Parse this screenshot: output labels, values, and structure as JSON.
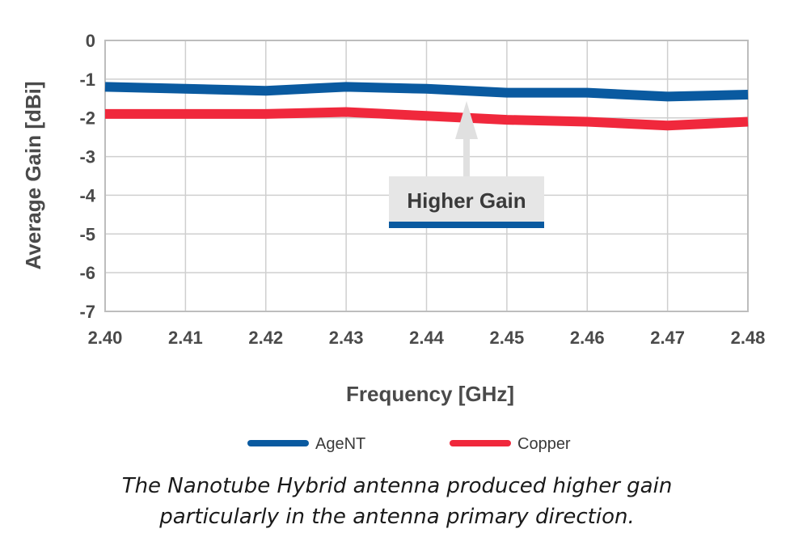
{
  "chart_data": {
    "type": "line",
    "title": "",
    "xlabel": "Frequency [GHz]",
    "ylabel": "Average Gain [dBi]",
    "x": [
      2.4,
      2.41,
      2.42,
      2.43,
      2.44,
      2.45,
      2.46,
      2.47,
      2.48
    ],
    "x_tick_labels": [
      "2.40",
      "2.41",
      "2.42",
      "2.43",
      "2.44",
      "2.45",
      "2.46",
      "2.47",
      "2.48"
    ],
    "y_ticks": [
      0,
      -1,
      -2,
      -3,
      -4,
      -5,
      -6,
      -7
    ],
    "y_tick_labels": [
      "0",
      "-1",
      "-2",
      "-3",
      "-4",
      "-5",
      "-6",
      "-7"
    ],
    "xlim": [
      2.4,
      2.48
    ],
    "ylim": [
      -7,
      0
    ],
    "grid": true,
    "legend_position": "bottom",
    "series": [
      {
        "name": "AgeNT",
        "color": "#0a5aa0",
        "values": [
          -1.2,
          -1.25,
          -1.3,
          -1.2,
          -1.25,
          -1.35,
          -1.35,
          -1.45,
          -1.4
        ]
      },
      {
        "name": "Copper",
        "color": "#f0283c",
        "values": [
          -1.9,
          -1.9,
          -1.9,
          -1.85,
          -1.95,
          -2.05,
          -2.1,
          -2.2,
          -2.1
        ]
      }
    ],
    "annotation": {
      "text": "Higher Gain",
      "arrow_at_x": 2.445
    }
  },
  "caption": {
    "line1": "The Nanotube Hybrid antenna produced higher gain",
    "line2": "particularly in the antenna primary direction."
  }
}
